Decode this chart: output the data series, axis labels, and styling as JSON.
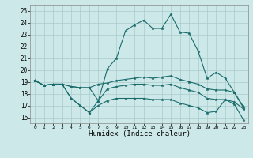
{
  "xlabel": "Humidex (Indice chaleur)",
  "x_ticks": [
    0,
    1,
    2,
    3,
    4,
    5,
    6,
    7,
    8,
    9,
    10,
    11,
    12,
    13,
    14,
    15,
    16,
    17,
    18,
    19,
    20,
    21,
    22,
    23
  ],
  "ylim": [
    15.5,
    25.5
  ],
  "xlim": [
    -0.5,
    23.5
  ],
  "yticks": [
    16,
    17,
    18,
    19,
    20,
    21,
    22,
    23,
    24,
    25
  ],
  "bg_color": "#cde8e8",
  "grid_color": "#aacccc",
  "line_color": "#1a6b6b",
  "line1": [
    19.1,
    18.7,
    18.8,
    18.8,
    17.6,
    17.0,
    16.4,
    17.4,
    20.1,
    21.0,
    23.3,
    23.8,
    24.2,
    23.5,
    23.5,
    24.7,
    23.2,
    23.1,
    21.6,
    19.3,
    19.8,
    19.3,
    18.1,
    16.8
  ],
  "line2": [
    19.1,
    18.7,
    18.8,
    18.8,
    18.6,
    18.5,
    18.5,
    18.8,
    18.9,
    19.1,
    19.2,
    19.3,
    19.4,
    19.3,
    19.4,
    19.5,
    19.2,
    19.0,
    18.8,
    18.4,
    18.3,
    18.3,
    18.1,
    16.9
  ],
  "line3": [
    19.1,
    18.7,
    18.8,
    18.8,
    18.6,
    18.5,
    18.5,
    17.4,
    18.4,
    18.6,
    18.7,
    18.8,
    18.8,
    18.7,
    18.7,
    18.8,
    18.5,
    18.3,
    18.1,
    17.6,
    17.5,
    17.5,
    17.1,
    15.8
  ],
  "line4": [
    19.1,
    18.7,
    18.8,
    18.8,
    17.6,
    17.0,
    16.4,
    17.0,
    17.4,
    17.6,
    17.6,
    17.6,
    17.6,
    17.5,
    17.5,
    17.5,
    17.2,
    17.0,
    16.8,
    16.4,
    16.5,
    17.5,
    17.3,
    16.7
  ]
}
